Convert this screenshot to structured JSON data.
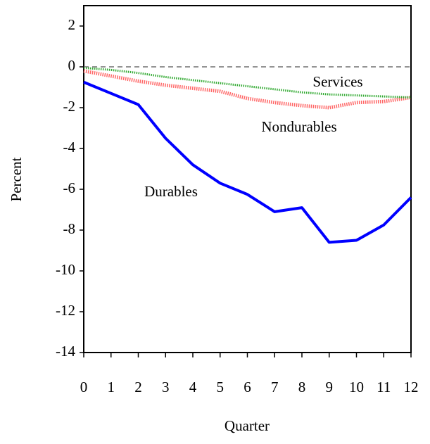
{
  "chart_data": {
    "type": "line",
    "x": [
      0,
      1,
      2,
      3,
      4,
      5,
      6,
      7,
      8,
      9,
      10,
      11,
      12
    ],
    "xlabel": "Quarter",
    "ylabel": "Percent",
    "xlim": [
      0,
      12
    ],
    "xticks": [
      0,
      1,
      2,
      3,
      4,
      5,
      6,
      7,
      8,
      9,
      10,
      11,
      12
    ],
    "ylim": [
      -14,
      3
    ],
    "yticks": [
      -14,
      -12,
      -10,
      -8,
      -6,
      -4,
      -2,
      0,
      2
    ],
    "series": [
      {
        "name": "Durables",
        "color": "#0000ff",
        "values": [
          -0.75,
          -1.3,
          -1.85,
          -3.5,
          -4.8,
          -5.7,
          -6.25,
          -7.1,
          -6.9,
          -8.6,
          -8.5,
          -7.75,
          -6.4
        ]
      },
      {
        "name": "Nondurables",
        "color": "#ff6666",
        "values": [
          -0.2,
          -0.45,
          -0.7,
          -0.9,
          -1.05,
          -1.2,
          -1.55,
          -1.75,
          -1.9,
          -2.0,
          -1.75,
          -1.7,
          -1.5
        ]
      },
      {
        "name": "Services",
        "color": "#33aa33",
        "values": [
          -0.05,
          -0.15,
          -0.3,
          -0.5,
          -0.65,
          -0.8,
          -0.95,
          -1.1,
          -1.25,
          -1.35,
          -1.4,
          -1.45,
          -1.5
        ]
      }
    ]
  }
}
